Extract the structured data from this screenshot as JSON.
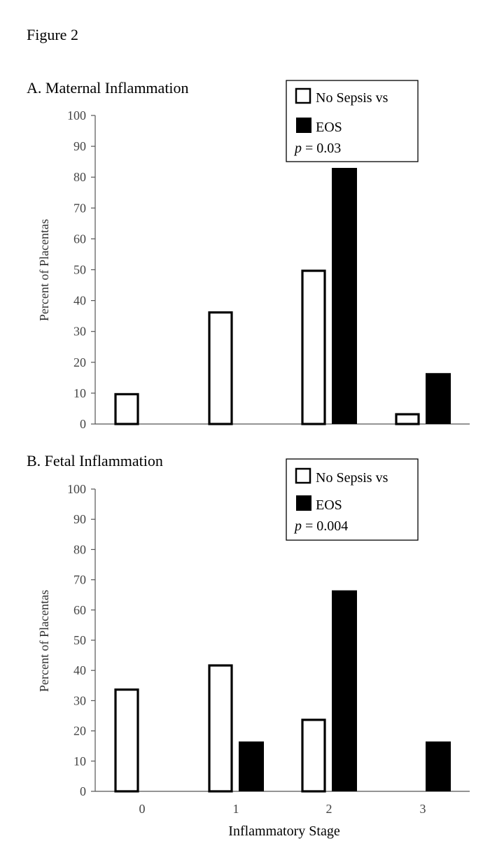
{
  "figure_label": "Figure 2",
  "xlabel": "Inflammatory Stage",
  "chart_data": [
    {
      "type": "bar",
      "title": "A. Maternal Inflammation",
      "ylabel": "Percent of Placentas",
      "ylim": [
        0,
        100
      ],
      "yticks": [
        0,
        10,
        20,
        30,
        40,
        50,
        60,
        70,
        80,
        90,
        100
      ],
      "categories": [
        "0",
        "1",
        "2",
        "3"
      ],
      "series": [
        {
          "name": "No Sepsis vs",
          "fill": "#ffffff",
          "stroke": "#000000",
          "values": [
            10,
            36.5,
            50,
            3.5
          ]
        },
        {
          "name": "EOS",
          "fill": "#000000",
          "stroke": "#000000",
          "values": [
            0,
            0,
            83,
            16.5
          ]
        }
      ],
      "legend": {
        "items": [
          "No Sepsis vs",
          "EOS"
        ],
        "p_symbol": "p",
        "p_value": " = 0.03",
        "placement": "top-right"
      },
      "grid": false
    },
    {
      "type": "bar",
      "title": "B. Fetal Inflammation",
      "ylabel": "Percent of Placentas",
      "ylim": [
        0,
        100
      ],
      "yticks": [
        0,
        10,
        20,
        30,
        40,
        50,
        60,
        70,
        80,
        90,
        100
      ],
      "categories": [
        "0",
        "1",
        "2",
        "3"
      ],
      "series": [
        {
          "name": "No Sepsis vs",
          "fill": "#ffffff",
          "stroke": "#000000",
          "values": [
            34,
            42,
            24,
            0
          ]
        },
        {
          "name": "EOS",
          "fill": "#000000",
          "stroke": "#000000",
          "values": [
            0,
            16.5,
            66.5,
            16.5
          ]
        }
      ],
      "legend": {
        "items": [
          "No Sepsis vs",
          "EOS"
        ],
        "p_symbol": "p",
        "p_value": " = 0.004",
        "placement": "top-right"
      },
      "grid": false
    }
  ]
}
